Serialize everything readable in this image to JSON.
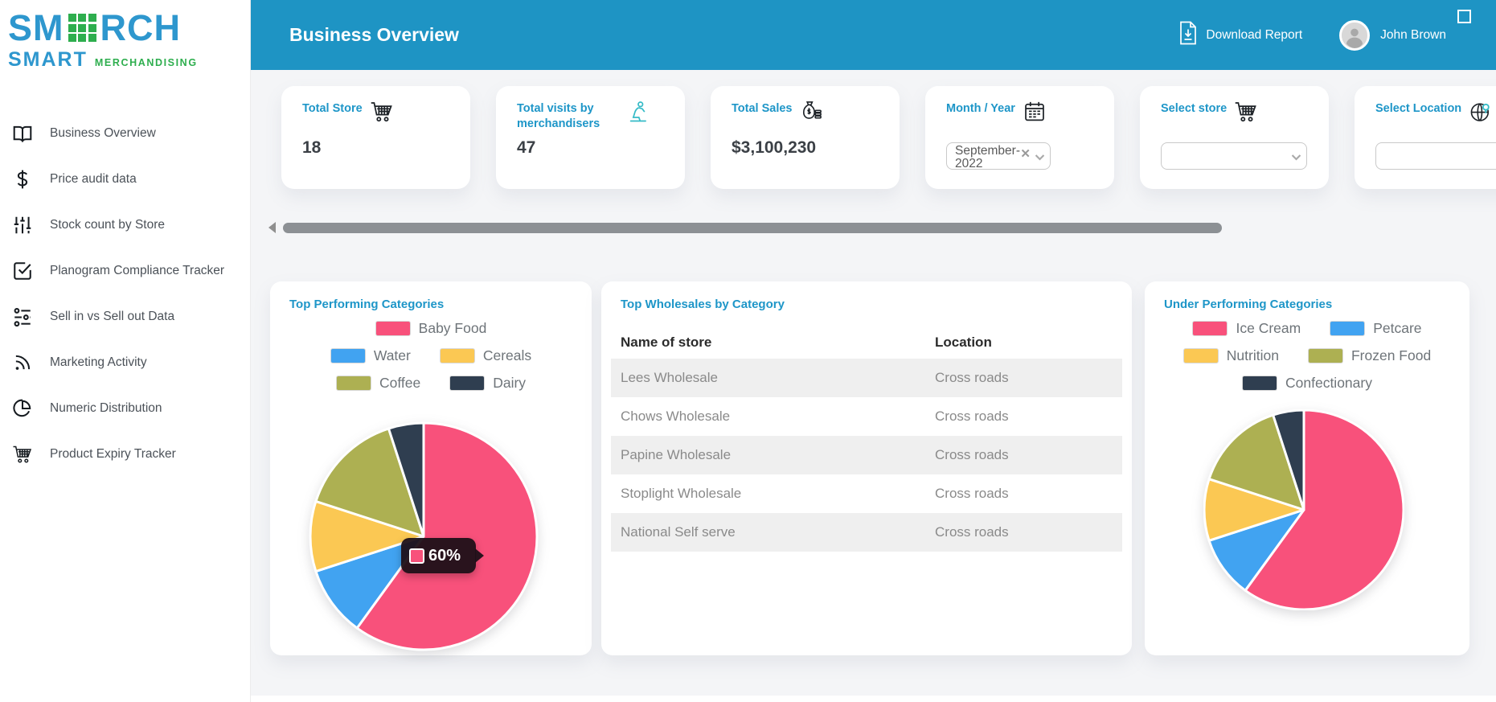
{
  "brand": {
    "name_prefix": "SM",
    "name_suffix": "RCH",
    "tagline_primary": "SMART",
    "tagline_secondary": "MERCHANDISING",
    "blue": "#2E97CE",
    "green": "#2EAE4E"
  },
  "sidebar": {
    "items": [
      {
        "label": "Business Overview",
        "icon": "open-book-icon"
      },
      {
        "label": "Price audit data",
        "icon": "dollar-icon"
      },
      {
        "label": "Stock count by Store",
        "icon": "sliders-icon"
      },
      {
        "label": "Planogram Compliance Tracker",
        "icon": "checkbox-icon"
      },
      {
        "label": "Sell in vs Sell out Data",
        "icon": "toggles-icon"
      },
      {
        "label": "Marketing Activity",
        "icon": "rss-icon"
      },
      {
        "label": "Numeric Distribution",
        "icon": "pie-chart-icon"
      },
      {
        "label": "Product Expiry Tracker",
        "icon": "cart-icon"
      }
    ]
  },
  "header": {
    "title": "Business Overview",
    "download_label": "Download Report",
    "user_name": "John Brown",
    "background": "#1E94C4"
  },
  "kpis": [
    {
      "label": "Total Store",
      "icon": "cart-icon",
      "type": "stat",
      "value": "18"
    },
    {
      "label": "Total visits by merchandisers",
      "icon": "merchandiser-icon",
      "type": "stat",
      "value": "47"
    },
    {
      "label": "Total Sales",
      "icon": "money-bag-icon",
      "type": "stat",
      "value": "$3,100,230"
    },
    {
      "label": "Month / Year",
      "icon": "calendar-icon",
      "type": "select-clearable",
      "value": "September-2022"
    },
    {
      "label": "Select store",
      "icon": "cart-icon",
      "type": "select",
      "value": ""
    },
    {
      "label": "Select Location",
      "icon": "globe-icon",
      "type": "input",
      "value": ""
    }
  ],
  "chart_data": [
    {
      "type": "pie",
      "title": "Top Performing Categories",
      "labels": [
        "Baby Food",
        "Water",
        "Cereals",
        "Coffee",
        "Dairy"
      ],
      "values": [
        60,
        10,
        10,
        15,
        5
      ],
      "colors": [
        "#F8517B",
        "#41A3F1",
        "#FBC853",
        "#ADB052",
        "#2F3E50"
      ],
      "legend_rows": [
        [
          0
        ],
        [
          1,
          2
        ],
        [
          3,
          4
        ]
      ],
      "legend_position": "top",
      "tooltip": {
        "series": "Baby Food",
        "text": "60%"
      }
    },
    {
      "type": "table",
      "title": "Top Wholesales by Category",
      "columns": [
        "Name of store",
        "Location"
      ],
      "rows": [
        [
          "Lees Wholesale",
          "Cross roads"
        ],
        [
          "Chows Wholesale",
          "Cross roads"
        ],
        [
          "Papine Wholesale",
          "Cross roads"
        ],
        [
          "Stoplight Wholesale",
          "Cross roads"
        ],
        [
          "National Self serve",
          "Cross roads"
        ]
      ]
    },
    {
      "type": "pie",
      "title": "Under Performing Categories",
      "labels": [
        "Ice Cream",
        "Petcare",
        "Nutrition",
        "Frozen Food",
        "Confectionary"
      ],
      "values": [
        60,
        10,
        10,
        15,
        5
      ],
      "colors": [
        "#F8517B",
        "#41A3F1",
        "#FBC853",
        "#ADB052",
        "#2F3E50"
      ],
      "legend_rows": [
        [
          0,
          1
        ],
        [
          2,
          3
        ],
        [
          4
        ]
      ],
      "legend_position": "top"
    }
  ]
}
